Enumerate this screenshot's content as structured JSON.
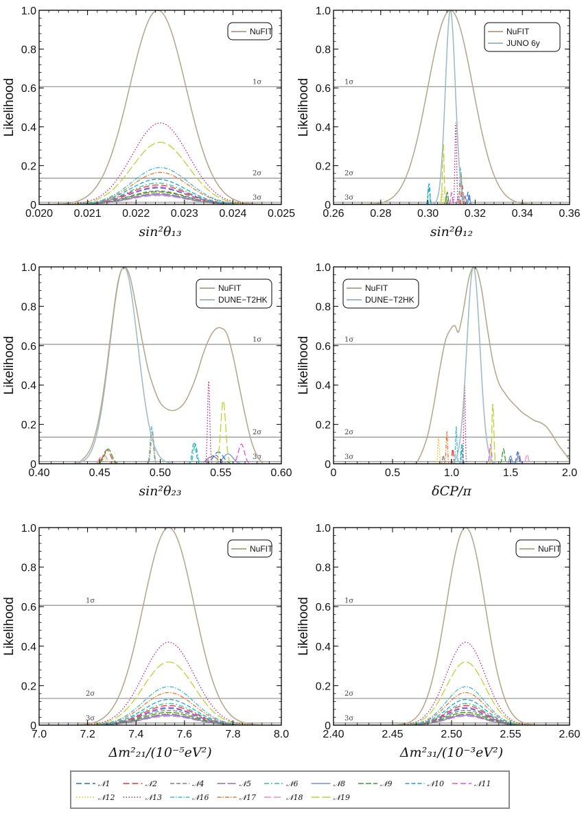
{
  "figure": {
    "y_axis_label": "Likelihood",
    "sigma_labels": [
      "1σ",
      "2σ",
      "3σ"
    ],
    "sigma_levels": [
      0.6065,
      0.1353,
      0.0111
    ]
  },
  "chart_data": [
    {
      "type": "line",
      "xlabel": "sin²θ₁₃",
      "ylabel": "Likelihood",
      "xlim": [
        0.02,
        0.025
      ],
      "ylim": [
        0,
        1.0
      ],
      "xticks": [
        "0.020",
        "0.021",
        "0.022",
        "0.023",
        "0.024",
        "0.025"
      ],
      "yticks": [
        "0",
        "0.2",
        "0.4",
        "0.6",
        "0.8",
        "1.0"
      ],
      "legend": [
        "NuFIT"
      ],
      "legend_position": "top-right",
      "series": [
        {
          "name": "NuFIT",
          "kind": "gauss",
          "center": 0.02245,
          "sigma": 0.00058,
          "peak": 1.0,
          "color": "#b5a88f"
        }
      ],
      "peaks": [
        {
          "model": "N13",
          "center": 0.0225,
          "sigma": 0.00058,
          "peak": 0.42
        },
        {
          "model": "N19",
          "center": 0.0225,
          "sigma": 0.00058,
          "peak": 0.32
        },
        {
          "model": "N16",
          "center": 0.0225,
          "sigma": 0.00058,
          "peak": 0.19
        },
        {
          "model": "N17",
          "center": 0.0225,
          "sigma": 0.00058,
          "peak": 0.165
        },
        {
          "model": "N10",
          "center": 0.02245,
          "sigma": 0.00058,
          "peak": 0.13
        },
        {
          "model": "N6",
          "center": 0.02245,
          "sigma": 0.00058,
          "peak": 0.11
        },
        {
          "model": "N2",
          "center": 0.02245,
          "sigma": 0.00058,
          "peak": 0.1
        },
        {
          "model": "N11",
          "center": 0.02245,
          "sigma": 0.00058,
          "peak": 0.09
        },
        {
          "model": "N1",
          "center": 0.02245,
          "sigma": 0.00058,
          "peak": 0.085
        },
        {
          "model": "N4",
          "center": 0.02245,
          "sigma": 0.00058,
          "peak": 0.07
        },
        {
          "model": "N9",
          "center": 0.02245,
          "sigma": 0.00058,
          "peak": 0.065
        },
        {
          "model": "N12",
          "center": 0.02245,
          "sigma": 0.00058,
          "peak": 0.06
        },
        {
          "model": "N5",
          "center": 0.02245,
          "sigma": 0.00058,
          "peak": 0.055
        },
        {
          "model": "N8",
          "center": 0.02245,
          "sigma": 0.00058,
          "peak": 0.05
        },
        {
          "model": "N18",
          "center": 0.02245,
          "sigma": 0.00058,
          "peak": 0.045
        }
      ]
    },
    {
      "type": "line",
      "xlabel": "sin²θ₁₂",
      "ylabel": "Likelihood",
      "xlim": [
        0.26,
        0.36
      ],
      "ylim": [
        0,
        1.0
      ],
      "xticks": [
        "0.26",
        "0.28",
        "0.30",
        "0.32",
        "0.34",
        "0.36"
      ],
      "yticks": [
        "0",
        "0.2",
        "0.4",
        "0.6",
        "0.8",
        "1.0"
      ],
      "legend": [
        "NuFIT",
        "JUNO 6y"
      ],
      "legend_position": "top-right",
      "series": [
        {
          "name": "NuFIT",
          "kind": "gauss",
          "center": 0.3095,
          "sigma": 0.0095,
          "peak": 1.0,
          "color": "#b5a88f"
        },
        {
          "name": "JUNO 6y",
          "kind": "gauss",
          "center": 0.3095,
          "sigma": 0.0021,
          "peak": 1.0,
          "color": "#9fbcc4"
        }
      ],
      "peaks": [
        {
          "model": "N13",
          "center": 0.3118,
          "sigma": 0.00035,
          "peak": 0.42
        },
        {
          "model": "N19",
          "center": 0.3065,
          "sigma": 0.00035,
          "peak": 0.32
        },
        {
          "model": "N16",
          "center": 0.3138,
          "sigma": 0.00035,
          "peak": 0.19
        },
        {
          "model": "N17",
          "center": 0.314,
          "sigma": 0.00035,
          "peak": 0.165
        },
        {
          "model": "N10",
          "center": 0.3005,
          "sigma": 0.00035,
          "peak": 0.11
        },
        {
          "model": "N6",
          "center": 0.3003,
          "sigma": 0.00035,
          "peak": 0.1
        },
        {
          "model": "N2",
          "center": 0.3145,
          "sigma": 0.00035,
          "peak": 0.1
        },
        {
          "model": "N12",
          "center": 0.306,
          "sigma": 0.00035,
          "peak": 0.08
        },
        {
          "model": "N9",
          "center": 0.3082,
          "sigma": 0.00035,
          "peak": 0.065
        },
        {
          "model": "N1",
          "center": 0.317,
          "sigma": 0.00035,
          "peak": 0.065
        },
        {
          "model": "N11",
          "center": 0.31,
          "sigma": 0.00035,
          "peak": 0.06
        },
        {
          "model": "N8",
          "center": 0.3175,
          "sigma": 0.00035,
          "peak": 0.05
        },
        {
          "model": "N4",
          "center": 0.3078,
          "sigma": 0.00035,
          "peak": 0.045
        },
        {
          "model": "N5",
          "center": 0.3157,
          "sigma": 0.00035,
          "peak": 0.045
        },
        {
          "model": "N18",
          "center": 0.3128,
          "sigma": 0.00035,
          "peak": 0.04
        }
      ]
    },
    {
      "type": "line",
      "xlabel": "sin²θ₂₃",
      "ylabel": "Likelihood",
      "xlim": [
        0.4,
        0.6
      ],
      "ylim": [
        0,
        1.0
      ],
      "xticks": [
        "0.40",
        "0.45",
        "0.50",
        "0.55",
        "0.60"
      ],
      "yticks": [
        "0",
        "0.2",
        "0.4",
        "0.6",
        "0.8",
        "1.0"
      ],
      "legend": [
        "NuFIT",
        "DUNE−T2HK"
      ],
      "legend_position": "top-right",
      "series": [
        {
          "name": "NuFIT",
          "kind": "curve",
          "color": "#b5a88f",
          "x": [
            0.432,
            0.44,
            0.445,
            0.45,
            0.455,
            0.46,
            0.465,
            0.47,
            0.475,
            0.48,
            0.485,
            0.49,
            0.495,
            0.5,
            0.505,
            0.51,
            0.515,
            0.52,
            0.525,
            0.53,
            0.535,
            0.54,
            0.545,
            0.55,
            0.555,
            0.56,
            0.565,
            0.57,
            0.575,
            0.58,
            0.585
          ],
          "y": [
            0.0,
            0.05,
            0.12,
            0.25,
            0.45,
            0.7,
            0.92,
            1.0,
            0.95,
            0.8,
            0.63,
            0.48,
            0.38,
            0.31,
            0.28,
            0.27,
            0.28,
            0.31,
            0.37,
            0.45,
            0.55,
            0.63,
            0.68,
            0.69,
            0.66,
            0.55,
            0.4,
            0.25,
            0.12,
            0.04,
            0.0
          ]
        },
        {
          "name": "DUNE−T2HK",
          "kind": "gauss",
          "center": 0.47,
          "sigma": 0.0115,
          "peak": 1.0,
          "color": "#9fbcc4"
        }
      ],
      "peaks": [
        {
          "model": "N13",
          "center": 0.54,
          "sigma": 0.0009,
          "peak": 0.42
        },
        {
          "model": "N19",
          "center": 0.552,
          "sigma": 0.002,
          "peak": 0.32
        },
        {
          "model": "N16",
          "center": 0.493,
          "sigma": 0.0012,
          "peak": 0.19
        },
        {
          "model": "N17",
          "center": 0.4935,
          "sigma": 0.0012,
          "peak": 0.165
        },
        {
          "model": "N10",
          "center": 0.528,
          "sigma": 0.0015,
          "peak": 0.11
        },
        {
          "model": "N6",
          "center": 0.529,
          "sigma": 0.0015,
          "peak": 0.1
        },
        {
          "model": "N11",
          "center": 0.567,
          "sigma": 0.0025,
          "peak": 0.1
        },
        {
          "model": "N9",
          "center": 0.457,
          "sigma": 0.003,
          "peak": 0.075
        },
        {
          "model": "N2",
          "center": 0.456,
          "sigma": 0.003,
          "peak": 0.07
        },
        {
          "model": "N1",
          "center": 0.548,
          "sigma": 0.004,
          "peak": 0.06
        },
        {
          "model": "N8",
          "center": 0.556,
          "sigma": 0.004,
          "peak": 0.05
        },
        {
          "model": "N18",
          "center": 0.453,
          "sigma": 0.003,
          "peak": 0.045
        },
        {
          "model": "N4",
          "center": 0.545,
          "sigma": 0.004,
          "peak": 0.045
        },
        {
          "model": "N5",
          "center": 0.543,
          "sigma": 0.004,
          "peak": 0.04
        },
        {
          "model": "N12",
          "center": 0.453,
          "sigma": 0.003,
          "peak": 0.03
        }
      ]
    },
    {
      "type": "line",
      "xlabel": "δCP/π",
      "ylabel": "Likelihood",
      "xlim": [
        0,
        2.0
      ],
      "ylim": [
        0,
        1.0
      ],
      "xticks": [
        "0",
        "0.5",
        "1.0",
        "1.5",
        "2.0"
      ],
      "yticks": [
        "0",
        "0.2",
        "0.4",
        "0.6",
        "0.8",
        "1.0"
      ],
      "legend": [
        "NuFIT",
        "DUNE−T2HK"
      ],
      "legend_position": "top-left",
      "series": [
        {
          "name": "NuFIT",
          "kind": "curve",
          "color": "#b5a88f",
          "x": [
            0.7,
            0.75,
            0.8,
            0.85,
            0.9,
            0.95,
            1.0,
            1.03,
            1.06,
            1.1,
            1.15,
            1.2,
            1.25,
            1.3,
            1.35,
            1.4,
            1.45,
            1.5,
            1.55,
            1.6,
            1.65,
            1.7,
            1.75,
            1.8,
            1.85,
            1.9,
            1.95,
            2.0
          ],
          "y": [
            0.0,
            0.06,
            0.15,
            0.3,
            0.48,
            0.63,
            0.69,
            0.7,
            0.67,
            0.78,
            0.95,
            1.0,
            0.9,
            0.7,
            0.52,
            0.41,
            0.36,
            0.32,
            0.29,
            0.26,
            0.24,
            0.22,
            0.21,
            0.19,
            0.15,
            0.1,
            0.06,
            0.02
          ]
        },
        {
          "name": "DUNE−T2HK",
          "kind": "gauss",
          "center": 1.185,
          "sigma": 0.055,
          "peak": 1.0,
          "color": "#9fbcc4"
        }
      ],
      "peaks": [
        {
          "model": "N13",
          "center": 1.11,
          "sigma": 0.006,
          "peak": 0.42
        },
        {
          "model": "N19",
          "center": 1.35,
          "sigma": 0.008,
          "peak": 0.31
        },
        {
          "model": "N16",
          "center": 1.04,
          "sigma": 0.006,
          "peak": 0.19
        },
        {
          "model": "N17",
          "center": 0.96,
          "sigma": 0.006,
          "peak": 0.165
        },
        {
          "model": "N12",
          "center": 0.89,
          "sigma": 0.006,
          "peak": 0.14
        },
        {
          "model": "N10",
          "center": 1.09,
          "sigma": 0.006,
          "peak": 0.1
        },
        {
          "model": "N6",
          "center": 1.085,
          "sigma": 0.006,
          "peak": 0.1
        },
        {
          "model": "N11",
          "center": 1.33,
          "sigma": 0.008,
          "peak": 0.1
        },
        {
          "model": "N2",
          "center": 1.01,
          "sigma": 0.006,
          "peak": 0.08
        },
        {
          "model": "N9",
          "center": 1.44,
          "sigma": 0.01,
          "peak": 0.075
        },
        {
          "model": "N1",
          "center": 1.56,
          "sigma": 0.01,
          "peak": 0.06
        },
        {
          "model": "N5",
          "center": 1.57,
          "sigma": 0.01,
          "peak": 0.055
        },
        {
          "model": "N18",
          "center": 1.64,
          "sigma": 0.01,
          "peak": 0.05
        },
        {
          "model": "N4",
          "center": 0.93,
          "sigma": 0.006,
          "peak": 0.045
        },
        {
          "model": "N8",
          "center": 1.5,
          "sigma": 0.01,
          "peak": 0.04
        }
      ]
    },
    {
      "type": "line",
      "xlabel": "Δm²₂₁/(10⁻⁵eV²)",
      "ylabel": "Likelihood",
      "xlim": [
        7.0,
        8.0
      ],
      "ylim": [
        0,
        1.0
      ],
      "xticks": [
        "7.0",
        "7.2",
        "7.4",
        "7.6",
        "7.8",
        "8.0"
      ],
      "yticks": [
        "0",
        "0.2",
        "0.4",
        "0.6",
        "0.8",
        "1.0"
      ],
      "legend": [
        "NuFIT"
      ],
      "legend_position": "top-right",
      "series": [
        {
          "name": "NuFIT",
          "kind": "gauss",
          "center": 7.535,
          "sigma": 0.105,
          "peak": 1.0,
          "color": "#b5a88f"
        }
      ],
      "peaks": [
        {
          "model": "N13",
          "center": 7.535,
          "sigma": 0.105,
          "peak": 0.42
        },
        {
          "model": "N19",
          "center": 7.535,
          "sigma": 0.105,
          "peak": 0.32
        },
        {
          "model": "N16",
          "center": 7.535,
          "sigma": 0.105,
          "peak": 0.195
        },
        {
          "model": "N17",
          "center": 7.535,
          "sigma": 0.105,
          "peak": 0.165
        },
        {
          "model": "N10",
          "center": 7.535,
          "sigma": 0.105,
          "peak": 0.13
        },
        {
          "model": "N6",
          "center": 7.535,
          "sigma": 0.105,
          "peak": 0.11
        },
        {
          "model": "N2",
          "center": 7.535,
          "sigma": 0.105,
          "peak": 0.1
        },
        {
          "model": "N11",
          "center": 7.535,
          "sigma": 0.105,
          "peak": 0.09
        },
        {
          "model": "N1",
          "center": 7.535,
          "sigma": 0.105,
          "peak": 0.085
        },
        {
          "model": "N4",
          "center": 7.535,
          "sigma": 0.105,
          "peak": 0.075
        },
        {
          "model": "N9",
          "center": 7.535,
          "sigma": 0.105,
          "peak": 0.065
        },
        {
          "model": "N12",
          "center": 7.535,
          "sigma": 0.105,
          "peak": 0.06
        },
        {
          "model": "N5",
          "center": 7.535,
          "sigma": 0.105,
          "peak": 0.055
        },
        {
          "model": "N8",
          "center": 7.535,
          "sigma": 0.105,
          "peak": 0.05
        },
        {
          "model": "N18",
          "center": 7.535,
          "sigma": 0.105,
          "peak": 0.045
        }
      ]
    },
    {
      "type": "line",
      "xlabel": "Δm²₃₁/(10⁻³eV²)",
      "ylabel": "Likelihood",
      "xlim": [
        2.4,
        2.6
      ],
      "ylim": [
        0,
        1.0
      ],
      "xticks": [
        "2.40",
        "2.45",
        "2.50",
        "2.55",
        "2.60"
      ],
      "yticks": [
        "0",
        "0.2",
        "0.4",
        "0.6",
        "0.8",
        "1.0"
      ],
      "legend": [
        "NuFIT"
      ],
      "legend_position": "top-right",
      "series": [
        {
          "name": "NuFIT",
          "kind": "gauss",
          "center": 2.512,
          "sigma": 0.0165,
          "peak": 1.0,
          "color": "#b5a88f"
        }
      ],
      "peaks": [
        {
          "model": "N13",
          "center": 2.512,
          "sigma": 0.0165,
          "peak": 0.42
        },
        {
          "model": "N19",
          "center": 2.512,
          "sigma": 0.0165,
          "peak": 0.32
        },
        {
          "model": "N16",
          "center": 2.512,
          "sigma": 0.0165,
          "peak": 0.195
        },
        {
          "model": "N17",
          "center": 2.512,
          "sigma": 0.0165,
          "peak": 0.165
        },
        {
          "model": "N10",
          "center": 2.512,
          "sigma": 0.0165,
          "peak": 0.13
        },
        {
          "model": "N6",
          "center": 2.512,
          "sigma": 0.0165,
          "peak": 0.11
        },
        {
          "model": "N2",
          "center": 2.512,
          "sigma": 0.0165,
          "peak": 0.1
        },
        {
          "model": "N11",
          "center": 2.512,
          "sigma": 0.0165,
          "peak": 0.09
        },
        {
          "model": "N1",
          "center": 2.512,
          "sigma": 0.0165,
          "peak": 0.085
        },
        {
          "model": "N4",
          "center": 2.512,
          "sigma": 0.0165,
          "peak": 0.075
        },
        {
          "model": "N9",
          "center": 2.512,
          "sigma": 0.0165,
          "peak": 0.065
        },
        {
          "model": "N12",
          "center": 2.512,
          "sigma": 0.0165,
          "peak": 0.06
        },
        {
          "model": "N5",
          "center": 2.512,
          "sigma": 0.0165,
          "peak": 0.055
        },
        {
          "model": "N8",
          "center": 2.512,
          "sigma": 0.0165,
          "peak": 0.05
        },
        {
          "model": "N18",
          "center": 2.512,
          "sigma": 0.0165,
          "peak": 0.045
        }
      ]
    }
  ],
  "models_legend": [
    {
      "id": "N1",
      "label": "𝒩1",
      "color": "#1f77b4",
      "dash": "8,4"
    },
    {
      "id": "N2",
      "label": "𝒩2",
      "color": "#e8382c",
      "dash": "9,4"
    },
    {
      "id": "N4",
      "label": "𝒩4",
      "color": "#7f7f7f",
      "dash": "6,3"
    },
    {
      "id": "N5",
      "label": "𝒩5",
      "color": "#9467bd",
      "dash": "12,3"
    },
    {
      "id": "N6",
      "label": "𝒩6",
      "color": "#2ec4a3",
      "dash": "7,3,2,3"
    },
    {
      "id": "N8",
      "label": "𝒩8",
      "color": "#6f8fe0",
      "dash": "1,0"
    },
    {
      "id": "N9",
      "label": "𝒩9",
      "color": "#2ca02c",
      "dash": "8,3"
    },
    {
      "id": "N10",
      "label": "𝒩10",
      "color": "#17a2d4",
      "dash": "6,3"
    },
    {
      "id": "N11",
      "label": "𝒩11",
      "color": "#e84ce0",
      "dash": "8,4"
    },
    {
      "id": "N12",
      "label": "𝒩12",
      "color": "#f2c230",
      "dash": "2,2"
    },
    {
      "id": "N13",
      "label": "𝒩13",
      "color": "#c2187a",
      "dash": "1.5,2.5"
    },
    {
      "id": "N16",
      "label": "𝒩16",
      "color": "#3cb8d8",
      "dash": "6,2,1.5,2"
    },
    {
      "id": "N17",
      "label": "𝒩17",
      "color": "#e8792a",
      "dash": "6,2,1.5,2"
    },
    {
      "id": "N18",
      "label": "𝒩18",
      "color": "#f08cc0",
      "dash": "10,4"
    },
    {
      "id": "N19",
      "label": "𝒩19",
      "color": "#b8d430",
      "dash": "12,4"
    }
  ]
}
